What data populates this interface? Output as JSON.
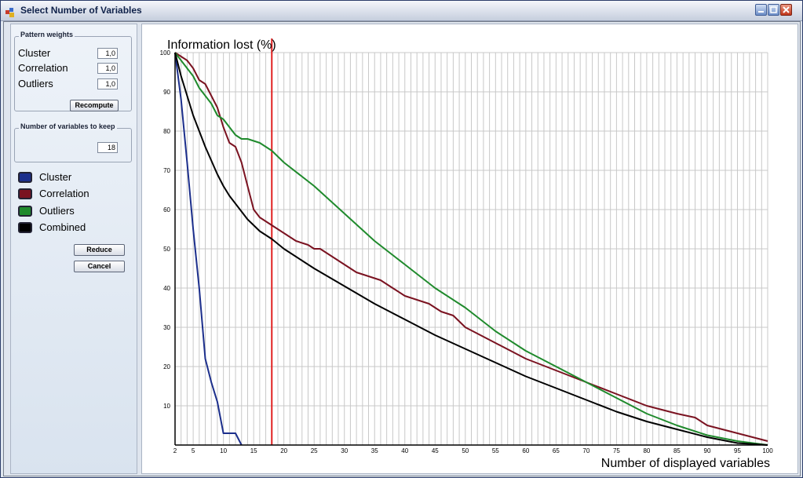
{
  "window": {
    "title": "Select Number of Variables",
    "minimize_icon": "minimize-icon",
    "maximize_icon": "maximize-icon",
    "close_icon": "close-icon"
  },
  "pattern_weights": {
    "title": "Pattern weights",
    "rows": [
      {
        "label": "Cluster",
        "value": "1,0"
      },
      {
        "label": "Correlation",
        "value": "1,0"
      },
      {
        "label": "Outliers",
        "value": "1,0"
      }
    ],
    "recompute_label": "Recompute"
  },
  "variables_to_keep": {
    "title": "Number of variables to keep",
    "value": "18"
  },
  "legend": [
    {
      "label": "Cluster",
      "color": "#1c2f8c"
    },
    {
      "label": "Correlation",
      "color": "#7a1220"
    },
    {
      "label": "Outliers",
      "color": "#1f8a2c"
    },
    {
      "label": "Combined",
      "color": "#000000"
    }
  ],
  "actions": {
    "reduce_label": "Reduce",
    "cancel_label": "Cancel"
  },
  "chart_data": {
    "type": "line",
    "title": "",
    "ylabel": "Information lost (%)",
    "xlabel": "Number of displayed variables",
    "xlim": [
      2,
      100
    ],
    "ylim": [
      0,
      100
    ],
    "x_ticks": [
      2,
      5,
      10,
      15,
      20,
      25,
      30,
      35,
      40,
      45,
      50,
      55,
      60,
      65,
      70,
      75,
      80,
      85,
      90,
      95,
      100
    ],
    "y_ticks": [
      10,
      20,
      30,
      40,
      50,
      60,
      70,
      80,
      90,
      100
    ],
    "grid": true,
    "marker_x": 18,
    "marker_color": "#e02020",
    "series": [
      {
        "name": "Cluster",
        "color": "#1c2f8c",
        "x": [
          2,
          3,
          4,
          5,
          6,
          7,
          8,
          9,
          10,
          11,
          12,
          13
        ],
        "y": [
          100,
          88,
          72,
          55,
          40,
          22,
          16,
          11,
          3,
          3,
          3,
          0
        ]
      },
      {
        "name": "Correlation",
        "color": "#7a1220",
        "x": [
          2,
          3,
          4,
          5,
          6,
          7,
          8,
          9,
          10,
          11,
          12,
          13,
          14,
          15,
          16,
          17,
          18,
          20,
          22,
          24,
          25,
          26,
          28,
          30,
          32,
          34,
          36,
          38,
          40,
          42,
          44,
          46,
          48,
          50,
          55,
          60,
          65,
          70,
          75,
          80,
          85,
          88,
          90,
          95,
          100
        ],
        "y": [
          100,
          99,
          98,
          96,
          93,
          92,
          89,
          86,
          81,
          77,
          76,
          72,
          66,
          60,
          58,
          57,
          56,
          54,
          52,
          51,
          50,
          50,
          48,
          46,
          44,
          43,
          42,
          40,
          38,
          37,
          36,
          34,
          33,
          30,
          26,
          22,
          19,
          16,
          13,
          10,
          8,
          7,
          5,
          3,
          1
        ]
      },
      {
        "name": "Outliers",
        "color": "#1f8a2c",
        "x": [
          2,
          3,
          4,
          5,
          6,
          7,
          8,
          9,
          10,
          11,
          12,
          13,
          14,
          15,
          16,
          17,
          18,
          20,
          25,
          30,
          35,
          40,
          45,
          50,
          55,
          60,
          65,
          70,
          75,
          80,
          85,
          90,
          95,
          100
        ],
        "y": [
          100,
          98,
          96,
          94,
          91,
          89,
          87,
          84,
          83,
          81,
          79,
          78,
          78,
          77.5,
          77,
          76,
          75,
          72,
          66,
          59,
          52,
          46,
          40,
          35,
          29,
          24,
          20,
          16,
          12,
          8,
          5,
          2.5,
          1,
          0
        ]
      },
      {
        "name": "Combined",
        "color": "#000000",
        "x": [
          2,
          3,
          4,
          5,
          6,
          7,
          8,
          9,
          10,
          11,
          12,
          13,
          14,
          15,
          16,
          17,
          18,
          20,
          25,
          30,
          35,
          40,
          45,
          50,
          55,
          60,
          65,
          70,
          75,
          80,
          85,
          90,
          95,
          100
        ],
        "y": [
          100,
          94,
          89,
          84,
          80,
          76,
          72.5,
          69,
          66,
          63.5,
          61.5,
          59.5,
          57.5,
          56,
          54.5,
          53.5,
          52.5,
          50,
          45,
          40.5,
          36,
          32,
          28,
          24.5,
          21,
          17.5,
          14.5,
          11.5,
          8.5,
          6,
          4,
          2,
          0.5,
          0
        ]
      }
    ]
  }
}
